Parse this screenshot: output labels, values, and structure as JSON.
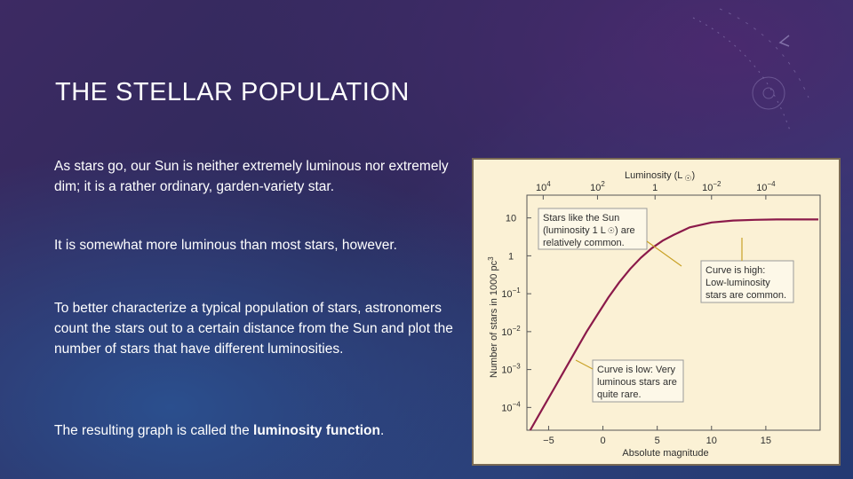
{
  "slide": {
    "title": "THE STELLAR POPULATION",
    "paragraphs": {
      "p1": "As stars go, our Sun is neither extremely luminous nor extremely dim; it is a rather ordinary, garden-variety star.",
      "p2": "It is somewhat more luminous than most stars, however.",
      "p3": "To better characterize a typical population of stars, astronomers count the stars out to a certain distance from the Sun and plot the number of stars that have different luminosities.",
      "p4_prefix": "The resulting graph is called the ",
      "p4_bold": "luminosity function",
      "p4_suffix": "."
    }
  },
  "chart_data": {
    "type": "line",
    "title": "",
    "xlabel": "Absolute magnitude",
    "ylabel": "Number of stars in 1000 pc",
    "ylabel_superscript": "3",
    "top_axis_label": "Luminosity (L",
    "top_axis_label_suffix": ")",
    "top_ticks": [
      {
        "base": "10",
        "exp": "4",
        "mag": -5.5
      },
      {
        "base": "10",
        "exp": "2",
        "mag": -0.5
      },
      {
        "base": "1",
        "exp": "",
        "mag": 4.8
      },
      {
        "base": "10",
        "exp": "−2",
        "mag": 10
      },
      {
        "base": "10",
        "exp": "−4",
        "mag": 15
      }
    ],
    "x_ticks": [
      "−5",
      "0",
      "5",
      "10",
      "15"
    ],
    "x_tick_values": [
      -5,
      0,
      5,
      10,
      15
    ],
    "y_ticks": [
      {
        "base": "10",
        "exp": ""
      },
      {
        "base": "1",
        "exp": ""
      },
      {
        "base": "10",
        "exp": "−1"
      },
      {
        "base": "10",
        "exp": "−2"
      },
      {
        "base": "10",
        "exp": "−3"
      },
      {
        "base": "10",
        "exp": "−4"
      }
    ],
    "y_tick_log_values": [
      1,
      0,
      -1,
      -2,
      -3,
      -4
    ],
    "xlim": [
      -7,
      20
    ],
    "ylim_log10": [
      -4.6,
      1.6
    ],
    "grid": false,
    "series": [
      {
        "color": "#8b1a4a",
        "x": [
          -6.7,
          -5.5,
          -4.5,
          -3.5,
          -2.5,
          -1.5,
          -0.5,
          0.5,
          1.5,
          2.5,
          3.5,
          4.5,
          5.5,
          6.5,
          8,
          10,
          12,
          14,
          16,
          18,
          20
        ],
        "y_log10": [
          -4.6,
          -4.0,
          -3.5,
          -3.0,
          -2.5,
          -2.0,
          -1.55,
          -1.1,
          -0.7,
          -0.35,
          -0.05,
          0.2,
          0.4,
          0.55,
          0.75,
          0.88,
          0.93,
          0.95,
          0.96,
          0.96,
          0.96
        ]
      }
    ],
    "annotations": {
      "sun": {
        "line1": "Stars like the Sun",
        "line2": "(luminosity 1 L",
        "line2_suffix": ") are",
        "line3": "relatively common."
      },
      "high": {
        "line1": "Curve is high:",
        "line2": "Low-luminosity",
        "line3": "stars are common."
      },
      "low": {
        "line1": "Curve is low: Very",
        "line2": "luminous stars are",
        "line3": "quite rare."
      }
    }
  }
}
